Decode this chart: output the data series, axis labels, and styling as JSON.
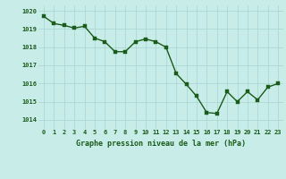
{
  "x": [
    0,
    1,
    2,
    3,
    4,
    5,
    6,
    7,
    8,
    9,
    10,
    11,
    12,
    13,
    14,
    15,
    16,
    17,
    18,
    19,
    20,
    21,
    22,
    23
  ],
  "y": [
    1019.7,
    1019.3,
    1019.2,
    1019.05,
    1019.15,
    1018.5,
    1018.3,
    1017.75,
    1017.75,
    1018.3,
    1018.45,
    1018.3,
    1018.0,
    1016.55,
    1015.95,
    1015.3,
    1014.4,
    1014.35,
    1015.55,
    1015.0,
    1015.55,
    1015.1,
    1015.8,
    1016.0
  ],
  "line_color": "#1a5c1a",
  "marker_color": "#1a5c1a",
  "bg_color": "#c8ece8",
  "grid_color": "#a8d4d0",
  "xlabel": "Graphe pression niveau de la mer (hPa)",
  "xlabel_color": "#1a5c1a",
  "tick_color": "#1a5c1a",
  "ylim": [
    1013.5,
    1020.3
  ],
  "xlim": [
    -0.5,
    23.5
  ],
  "yticks": [
    1014,
    1015,
    1016,
    1017,
    1018,
    1019,
    1020
  ],
  "xticks": [
    0,
    1,
    2,
    3,
    4,
    5,
    6,
    7,
    8,
    9,
    10,
    11,
    12,
    13,
    14,
    15,
    16,
    17,
    18,
    19,
    20,
    21,
    22,
    23
  ],
  "xtick_labels": [
    "0",
    "1",
    "2",
    "3",
    "4",
    "5",
    "6",
    "7",
    "8",
    "9",
    "10",
    "11",
    "12",
    "13",
    "14",
    "15",
    "16",
    "17",
    "18",
    "19",
    "20",
    "21",
    "22",
    "23"
  ],
  "marker_size": 2.5,
  "line_width": 1.0
}
